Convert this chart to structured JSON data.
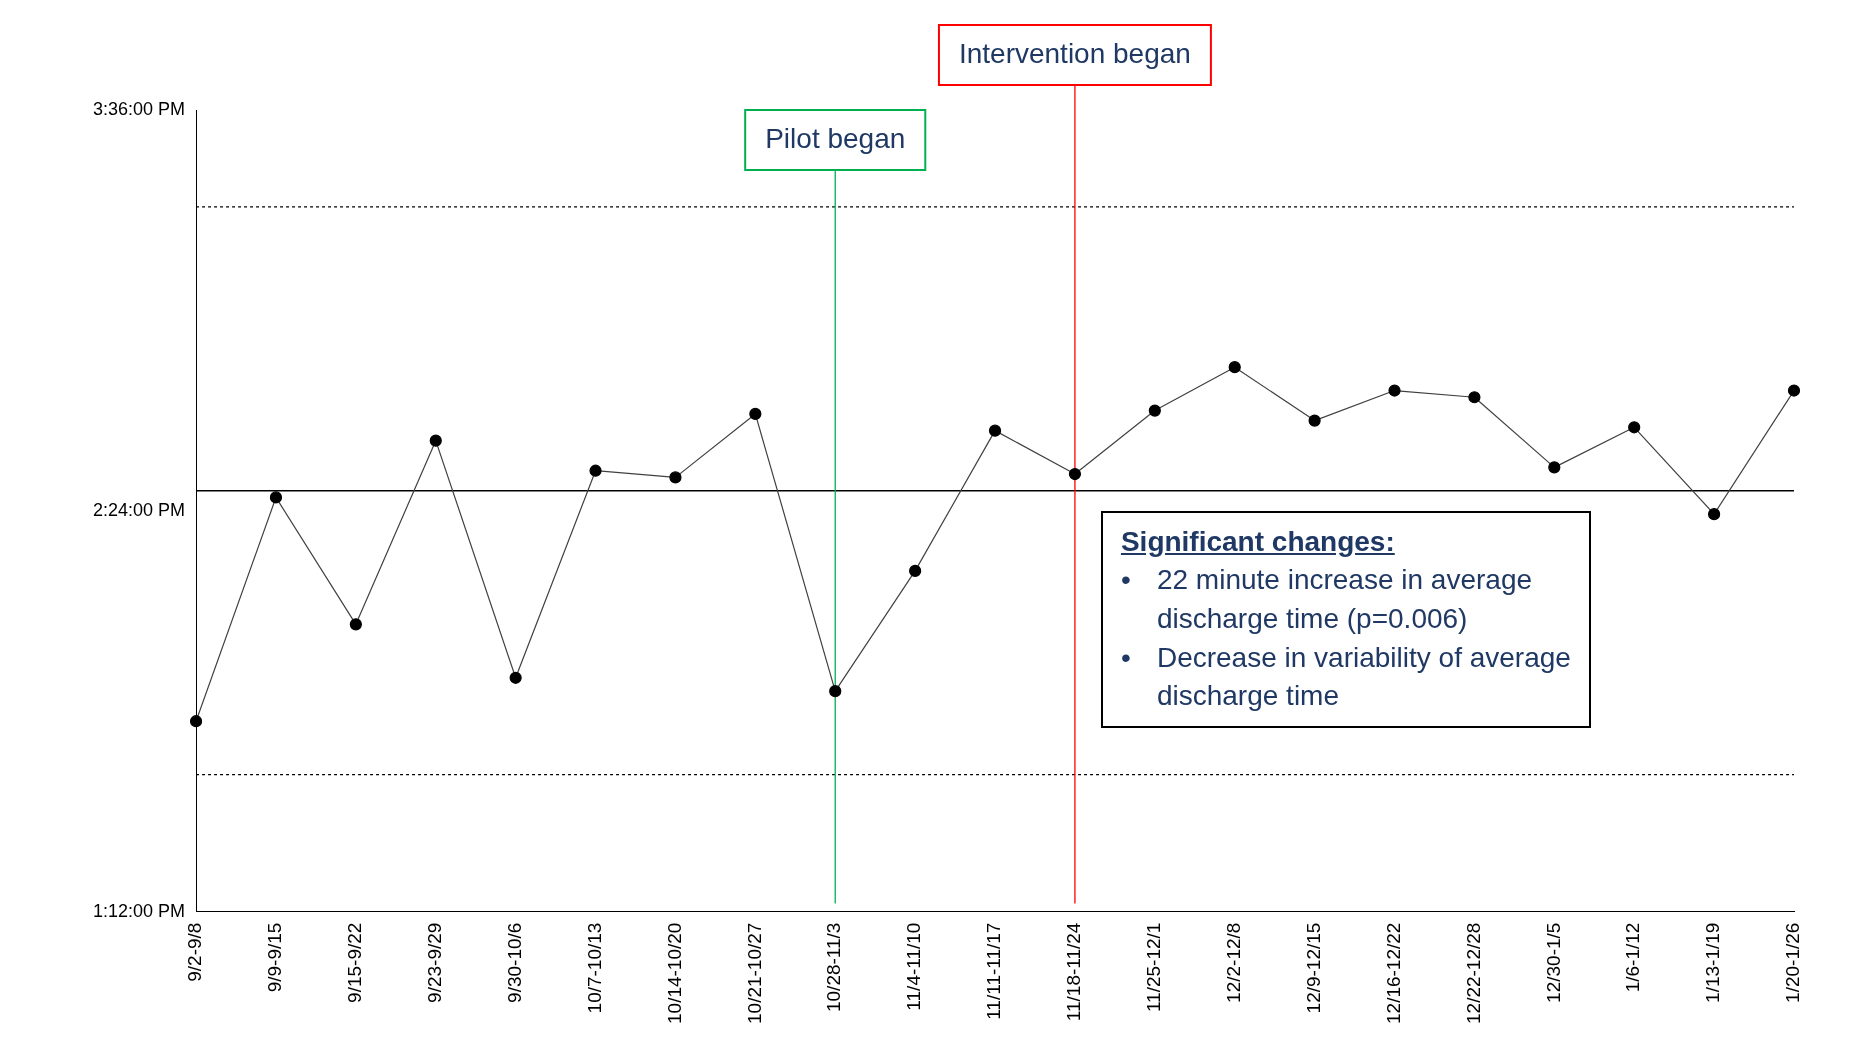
{
  "chart_data": {
    "type": "line",
    "categories": [
      "9/2-9/8",
      "9/9-9/15",
      "9/15-9/22",
      "9/23-9/29",
      "9/30-10/6",
      "10/7-10/13",
      "10/14-10/20",
      "10/21-10/27",
      "10/28-11/3",
      "11/4-11/10",
      "11/11-11/17",
      "11/18-11/24",
      "11/25-12/1",
      "12/2-12/8",
      "12/9-12/15",
      "12/16-12/22",
      "12/22-12/28",
      "12/30-1/5",
      "1/6-1/12",
      "1/13-1/19",
      "1/20-1/26"
    ],
    "series": [
      {
        "color": "#000000",
        "values": [
          13.77,
          14.44,
          14.06,
          14.61,
          13.9,
          14.52,
          14.5,
          14.69,
          13.86,
          14.22,
          14.64,
          14.51,
          14.7,
          14.83,
          14.67,
          14.76,
          14.74,
          14.53,
          14.65,
          14.39,
          14.76
        ]
      }
    ],
    "ylim": [
      13.2,
      15.6
    ],
    "yticks": [
      {
        "value": 13.2,
        "label": "1:12:00 PM"
      },
      {
        "value": 14.4,
        "label": "2:24:00 PM"
      },
      {
        "value": 15.6,
        "label": "3:36:00 PM"
      }
    ],
    "grid": false,
    "legend": false,
    "marker": "circle",
    "line_style": "solid",
    "ref_lines": [
      {
        "axis": "y",
        "value": 14.46,
        "color": "#000000",
        "line_style": "solid"
      },
      {
        "axis": "y",
        "value": 15.31,
        "color": "#000000",
        "line_style": "dotted"
      },
      {
        "axis": "y",
        "value": 13.61,
        "color": "#000000",
        "line_style": "dotted"
      },
      {
        "axis": "x",
        "value": "10/28-11/3",
        "label": "Pilot began",
        "color": "#00b050",
        "line_style": "solid"
      },
      {
        "axis": "x",
        "value": "11/18-11/24",
        "label": "Intervention began",
        "color": "#ff0000",
        "line_style": "solid"
      }
    ],
    "annotations": [
      "Significant changes:",
      "• 22 minute increase in average discharge time (p=0.006)",
      "• Decrease in variability of average discharge time"
    ]
  }
}
